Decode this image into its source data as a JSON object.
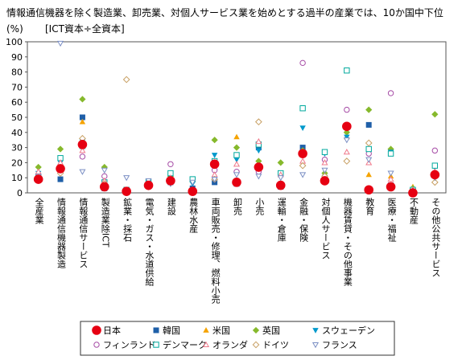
{
  "header_text": "情報通信機器を除く製造業、卸売業、対個人サービス業を始めとする過半の産業では、10か国中下位",
  "chart_data": {
    "type": "scatter",
    "unit_label": "(%)",
    "ratio_label": "[ICT資本÷全資本]",
    "ylim": [
      0,
      100
    ],
    "yticks": [
      0,
      10,
      20,
      30,
      40,
      50,
      60,
      70,
      80,
      90,
      100
    ],
    "grid": false,
    "legend_position": "bottom",
    "categories": [
      "全産業",
      "情報通信機器製造",
      "情報通信サービス",
      "製造業除ICT",
      "鉱業・採石",
      "電気・ガス・水道供給",
      "建設",
      "農林水産",
      "車両販売・修理、燃料小売",
      "卸売",
      "小売",
      "運輸・倉庫",
      "金融・保険",
      "対個人サービス",
      "機器賃貸・その他事業",
      "教育",
      "医療・福祉",
      "不動産",
      "その他公共サービス"
    ],
    "series": [
      {
        "name": "日本",
        "color": "#e60012",
        "marker": "circle-filled",
        "values": [
          9,
          16,
          32,
          4,
          1,
          5,
          8,
          1,
          19,
          7,
          17,
          5,
          26,
          8,
          44,
          2,
          4,
          0,
          12
        ]
      },
      {
        "name": "韓国",
        "color": "#1f5fa8",
        "marker": "square-filled",
        "values": [
          9,
          9,
          50,
          3,
          1,
          6,
          7,
          3,
          7,
          6,
          30,
          4,
          30,
          10,
          44,
          45,
          5,
          1,
          12
        ]
      },
      {
        "name": "米国",
        "color": "#f5a300",
        "marker": "triangle-filled",
        "values": [
          11,
          17,
          47,
          5,
          0,
          5,
          8,
          1,
          10,
          37,
          18,
          6,
          28,
          12,
          37,
          12,
          11,
          4,
          8
        ]
      },
      {
        "name": "英国",
        "color": "#86b92c",
        "marker": "diamond-filled",
        "values": [
          17,
          29,
          62,
          17,
          0,
          5,
          11,
          2,
          35,
          30,
          21,
          20,
          28,
          13,
          40,
          55,
          29,
          3,
          52
        ]
      },
      {
        "name": "スウェーデン",
        "color": "#0099cc",
        "marker": "triangle-down-filled",
        "values": [
          13,
          20,
          34,
          6,
          2,
          5,
          11,
          6,
          25,
          22,
          28,
          12,
          43,
          26,
          37,
          27,
          27,
          1,
          17
        ]
      },
      {
        "name": "フィンランド",
        "color": "#a64ca6",
        "marker": "circle-open",
        "values": [
          12,
          16,
          24,
          11,
          1,
          5,
          19,
          1,
          15,
          14,
          14,
          4,
          86,
          22,
          55,
          26,
          66,
          0,
          28
        ]
      },
      {
        "name": "デンマーク",
        "color": "#00a99d",
        "marker": "square-open",
        "values": [
          10,
          23,
          31,
          7,
          2,
          7,
          13,
          9,
          21,
          25,
          32,
          13,
          56,
          27,
          81,
          29,
          26,
          2,
          18
        ]
      },
      {
        "name": "オランダ",
        "color": "#f07a8c",
        "marker": "triangle-open",
        "values": [
          14,
          20,
          28,
          8,
          1,
          6,
          10,
          2,
          12,
          19,
          34,
          12,
          21,
          20,
          27,
          20,
          9,
          2,
          14
        ]
      },
      {
        "name": "ドイツ",
        "color": "#c8a064",
        "marker": "diamond-open",
        "values": [
          9,
          13,
          36,
          6,
          75,
          4,
          7,
          1,
          9,
          7,
          47,
          6,
          18,
          11,
          21,
          33,
          4,
          1,
          7
        ]
      },
      {
        "name": "フランス",
        "color": "#7b8fc4",
        "marker": "triangle-down-open",
        "values": [
          11,
          99,
          14,
          15,
          10,
          8,
          6,
          7,
          9,
          12,
          11,
          10,
          12,
          15,
          35,
          22,
          13,
          1,
          10
        ]
      }
    ]
  }
}
